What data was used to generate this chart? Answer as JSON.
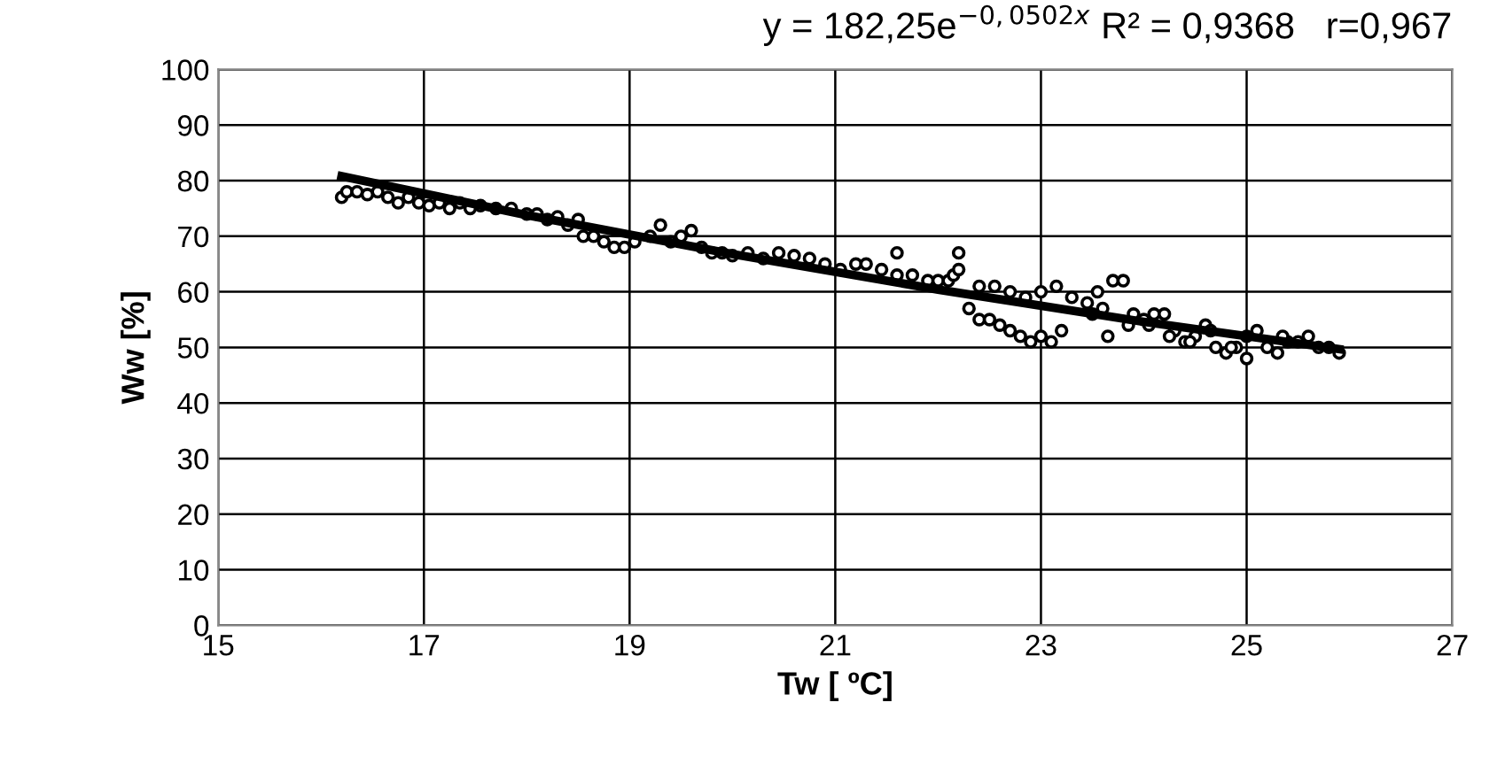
{
  "chart_data": {
    "type": "scatter",
    "title": "y = 182,25e$^{−0,0502x}$ R² = 0,9368   r=0,967",
    "xlabel": "Tw [ ºC]",
    "ylabel": "Ww [%]",
    "xlim": [
      15,
      27
    ],
    "xticks": [
      15,
      17,
      19,
      21,
      23,
      25,
      27
    ],
    "ylim": [
      0,
      100
    ],
    "yticks": [
      0,
      10,
      20,
      30,
      40,
      50,
      60,
      70,
      80,
      90,
      100
    ],
    "grid": true,
    "legend": false,
    "series": [
      {
        "color": "#000000",
        "marker": "circle",
        "x": [
          16.2,
          16.25,
          16.35,
          16.45,
          16.55,
          16.65,
          16.75,
          16.85,
          16.95,
          17.05,
          17.15,
          17.25,
          17.35,
          17.45,
          17.55,
          17.7,
          17.85,
          18.0,
          18.1,
          18.2,
          18.3,
          18.4,
          18.5,
          18.55,
          18.65,
          18.75,
          18.85,
          18.95,
          19.05,
          19.2,
          19.3,
          19.4,
          19.5,
          19.6,
          19.7,
          19.8,
          19.9,
          20.0,
          20.15,
          20.3,
          20.45,
          20.6,
          20.75,
          20.9,
          21.05,
          21.2,
          21.3,
          21.45,
          21.6,
          21.75,
          21.9,
          22.0,
          22.1,
          22.15,
          22.2,
          22.3,
          22.4,
          22.5,
          22.6,
          22.7,
          22.8,
          22.9,
          23.0,
          23.1,
          23.2,
          22.4,
          22.55,
          22.7,
          22.85,
          23.0,
          23.15,
          23.3,
          23.45,
          23.55,
          23.6,
          23.7,
          23.8,
          23.9,
          24.0,
          24.1,
          24.2,
          24.3,
          24.4,
          24.5,
          24.6,
          24.7,
          24.8,
          24.9,
          23.5,
          23.65,
          23.85,
          24.05,
          24.25,
          24.45,
          24.65,
          24.85,
          25.0,
          25.1,
          25.2,
          25.3,
          25.4,
          25.5,
          25.6,
          25.7,
          25.8,
          25.9,
          25.0,
          25.35,
          21.6,
          22.2
        ],
        "values": [
          77,
          78,
          78,
          77.5,
          78,
          77,
          76,
          77,
          76,
          75.5,
          76,
          75,
          76,
          75,
          75.5,
          75,
          75,
          74,
          74,
          73,
          73.5,
          72,
          73,
          70,
          70,
          69,
          68,
          68,
          69,
          70,
          72,
          69,
          70,
          71,
          68,
          67,
          67,
          66.5,
          67,
          66,
          67,
          66.5,
          66,
          65,
          64,
          65,
          65,
          64,
          63,
          63,
          62,
          62,
          62,
          63,
          64,
          57,
          55,
          55,
          54,
          53,
          52,
          51,
          52,
          51,
          53,
          61,
          61,
          60,
          59,
          60,
          61,
          59,
          58,
          60,
          57,
          62,
          62,
          56,
          55,
          56,
          56,
          53,
          51,
          52,
          54,
          50,
          49,
          50,
          56,
          52,
          54,
          54,
          52,
          51,
          53,
          50,
          48,
          53,
          50,
          49,
          51,
          51,
          52,
          50,
          50,
          49,
          52,
          52,
          67,
          67
        ]
      },
      {
        "type": "line",
        "color": "#000000",
        "marker": "none",
        "x": [
          16.2,
          18,
          20,
          22,
          24,
          25.9
        ],
        "values": [
          80.8,
          73.8,
          66.8,
          60.4,
          54.6,
          49.7
        ]
      }
    ]
  }
}
